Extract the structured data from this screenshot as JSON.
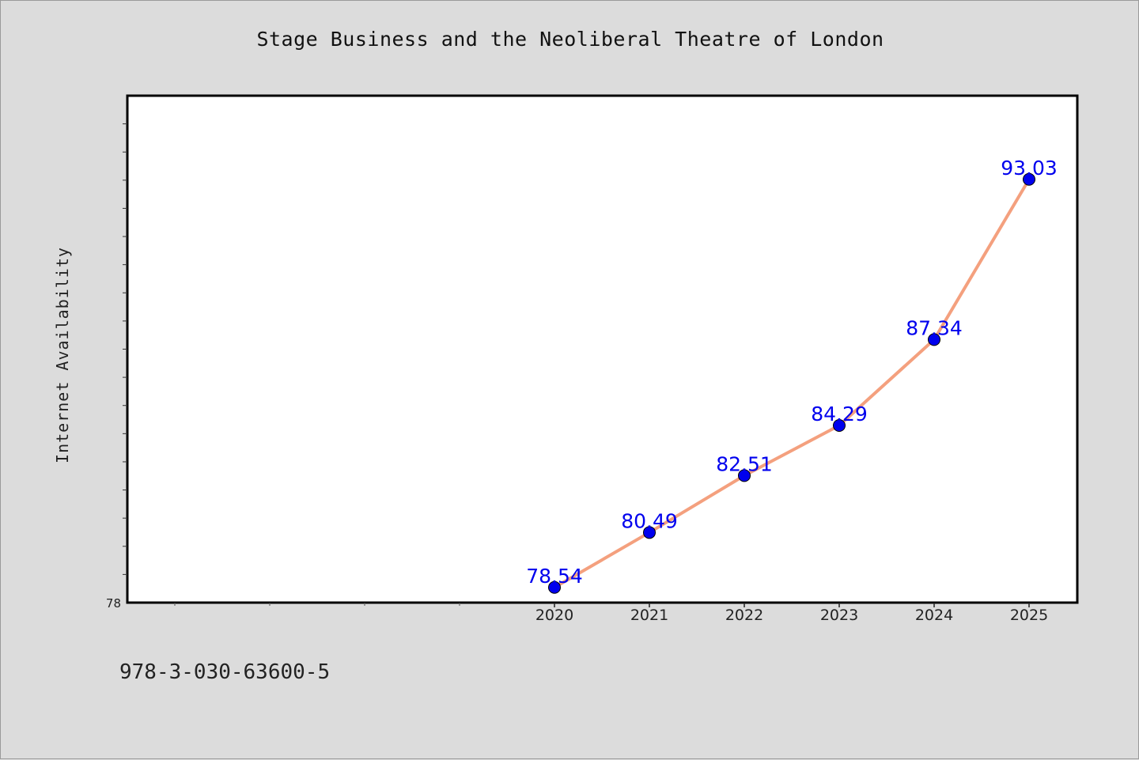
{
  "chart_data": {
    "type": "line",
    "title": "Stage Business and the Neoliberal Theatre of London",
    "xlabel": "",
    "ylabel": "Internet Availability",
    "x": [
      "2020",
      "2021",
      "2022",
      "2023",
      "2024",
      "2025"
    ],
    "series": [
      {
        "values": [
          78.54,
          80.49,
          82.51,
          84.29,
          87.34,
          93.03
        ]
      }
    ],
    "data_labels": [
      "78.54",
      "80.49",
      "82.51",
      "84.29",
      "87.34",
      "93.03"
    ],
    "y_tick_labels": [
      "78"
    ],
    "ylim": [
      78,
      96
    ],
    "grid": false,
    "legend": "none",
    "colors": {
      "line": "#f4a07e",
      "marker": "#0000ee",
      "label": "#0000ee"
    }
  },
  "footer": {
    "isbn": "978-3-030-63600-5"
  }
}
